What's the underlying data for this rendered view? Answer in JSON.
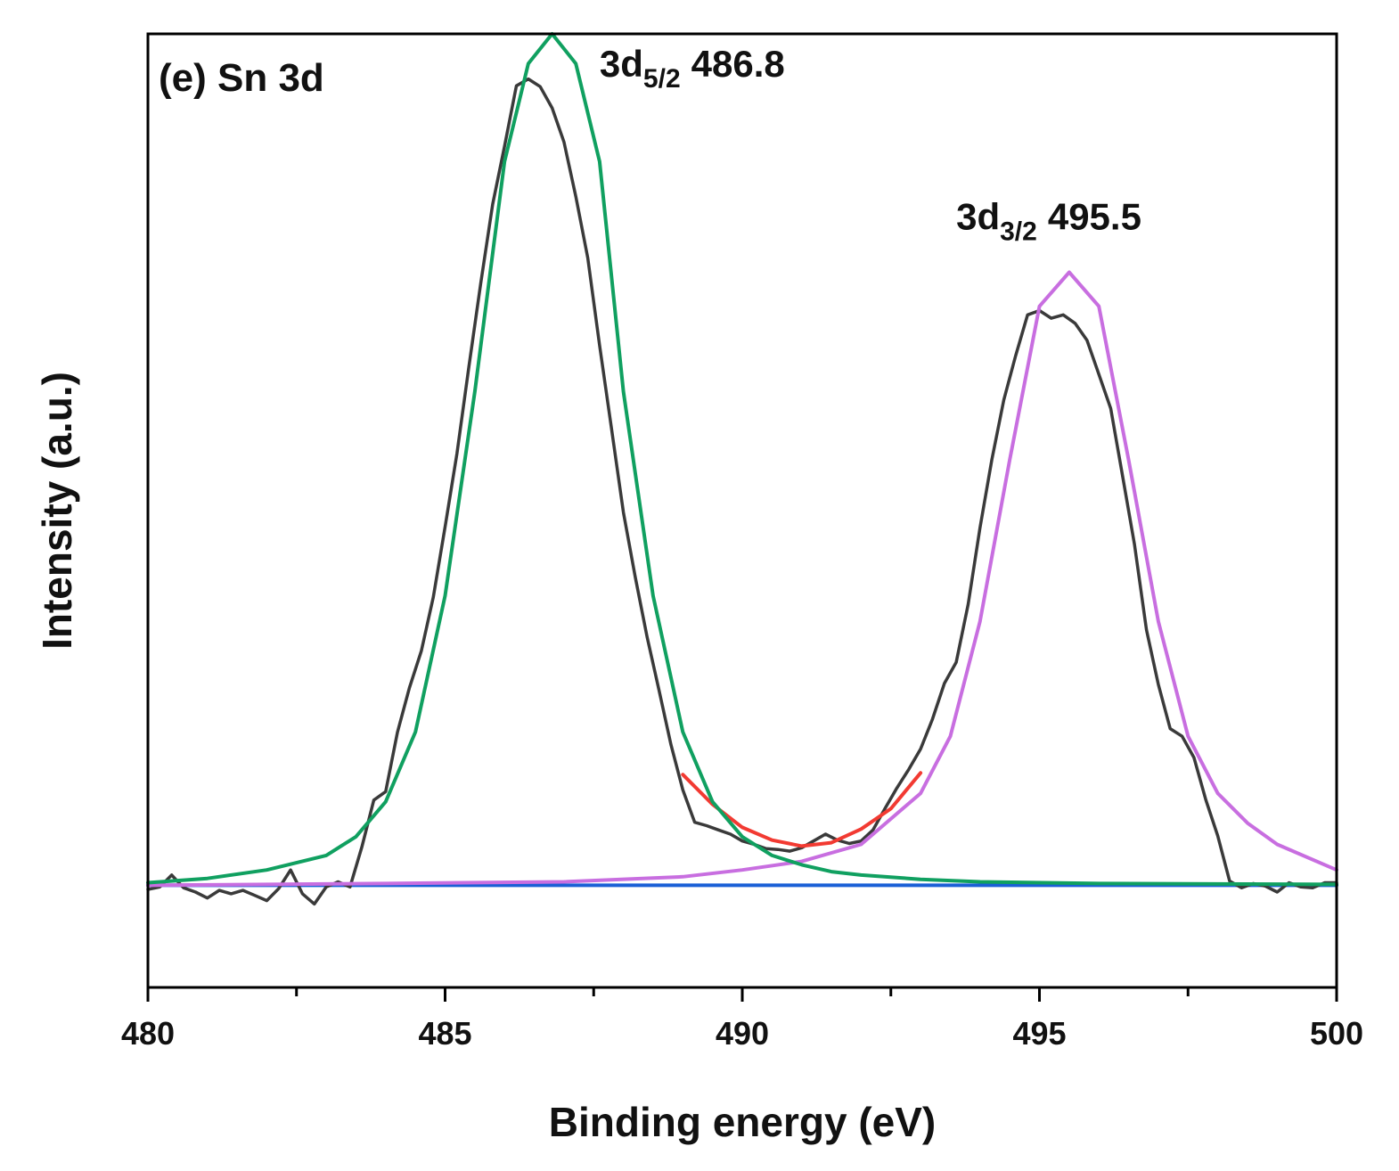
{
  "chart_data": {
    "type": "line",
    "title": "(e) Sn 3d",
    "xlabel": "Binding energy (eV)",
    "ylabel": "Intensity (a.u.)",
    "xlim": [
      480,
      500
    ],
    "ylim": [
      -0.12,
      1.0
    ],
    "x_ticks": [
      480,
      485,
      490,
      495,
      500
    ],
    "x_tick_labels": [
      "480",
      "485",
      "490",
      "495",
      "500"
    ],
    "x_minor_step": 2.5,
    "y_ticks_shown": false,
    "grid": false,
    "legend": "none",
    "colors": {
      "raw": "#3a3a3a",
      "baseline": "#1a5fd6",
      "envelope": "#f23a32",
      "peak1": "#10a060",
      "peak2": "#c86ee0"
    },
    "series": [
      {
        "name": "raw",
        "x": [
          480.0,
          480.2,
          480.4,
          480.6,
          480.8,
          481.0,
          481.2,
          481.4,
          481.6,
          481.8,
          482.0,
          482.2,
          482.4,
          482.6,
          482.8,
          483.0,
          483.2,
          483.4,
          483.6,
          483.8,
          484.0,
          484.2,
          484.4,
          484.6,
          484.8,
          485.0,
          485.2,
          485.4,
          485.6,
          485.8,
          486.0,
          486.2,
          486.4,
          486.6,
          486.8,
          487.0,
          487.2,
          487.4,
          487.6,
          487.8,
          488.0,
          488.2,
          488.4,
          488.6,
          488.8,
          489.0,
          489.2,
          489.4,
          489.6,
          489.8,
          490.0,
          490.2,
          490.4,
          490.6,
          490.8,
          491.0,
          491.2,
          491.4,
          491.6,
          491.8,
          492.0,
          492.2,
          492.4,
          492.6,
          492.8,
          493.0,
          493.2,
          493.4,
          493.6,
          493.8,
          494.0,
          494.2,
          494.4,
          494.6,
          494.8,
          495.0,
          495.2,
          495.4,
          495.6,
          495.8,
          496.0,
          496.2,
          496.4,
          496.6,
          496.8,
          497.0,
          497.2,
          497.4,
          497.6,
          497.8,
          498.0,
          498.2,
          498.4,
          498.6,
          498.8,
          499.0,
          499.2,
          499.4,
          499.6,
          499.8,
          500.0
        ],
        "y": [
          -0.005,
          -0.002,
          0.012,
          -0.003,
          -0.008,
          -0.015,
          -0.006,
          -0.01,
          -0.006,
          -0.012,
          -0.018,
          -0.004,
          0.018,
          -0.01,
          -0.022,
          -0.002,
          0.004,
          -0.002,
          0.045,
          0.1,
          0.11,
          0.18,
          0.232,
          0.275,
          0.338,
          0.421,
          0.507,
          0.609,
          0.707,
          0.8,
          0.868,
          0.939,
          0.947,
          0.938,
          0.913,
          0.873,
          0.809,
          0.737,
          0.634,
          0.536,
          0.438,
          0.362,
          0.291,
          0.229,
          0.165,
          0.112,
          0.074,
          0.07,
          0.065,
          0.06,
          0.052,
          0.048,
          0.043,
          0.042,
          0.04,
          0.044,
          0.052,
          0.06,
          0.053,
          0.049,
          0.052,
          0.065,
          0.09,
          0.114,
          0.136,
          0.16,
          0.195,
          0.237,
          0.262,
          0.33,
          0.42,
          0.5,
          0.57,
          0.622,
          0.67,
          0.675,
          0.666,
          0.67,
          0.66,
          0.64,
          0.6,
          0.56,
          0.48,
          0.4,
          0.3,
          0.236,
          0.184,
          0.175,
          0.15,
          0.1,
          0.058,
          0.005,
          -0.003,
          0.002,
          -0.001,
          -0.008,
          0.003,
          -0.002,
          -0.003,
          0.003,
          0.003
        ]
      },
      {
        "name": "baseline",
        "x": [
          480,
          500
        ],
        "y": [
          0,
          0
        ]
      },
      {
        "name": "envelope",
        "x": [
          489.0,
          489.5,
          490.0,
          490.5,
          491.0,
          491.5,
          492.0,
          492.5,
          493.0
        ],
        "y": [
          0.13,
          0.095,
          0.068,
          0.053,
          0.046,
          0.05,
          0.066,
          0.09,
          0.132
        ]
      },
      {
        "name": "peak1",
        "center": 486.8,
        "fwhm": 2.3,
        "height": 1.0,
        "x": [
          480.0,
          481.0,
          482.0,
          483.0,
          483.5,
          484.0,
          484.5,
          485.0,
          485.5,
          486.0,
          486.4,
          486.8,
          487.2,
          487.6,
          488.0,
          488.5,
          489.0,
          489.5,
          490.0,
          490.5,
          491.0,
          491.5,
          492.0,
          493.0,
          494.0,
          496.0,
          500.0
        ],
        "y": [
          0.003,
          0.008,
          0.018,
          0.035,
          0.057,
          0.098,
          0.18,
          0.34,
          0.58,
          0.85,
          0.965,
          1.0,
          0.965,
          0.85,
          0.58,
          0.34,
          0.18,
          0.098,
          0.057,
          0.035,
          0.024,
          0.016,
          0.012,
          0.007,
          0.004,
          0.002,
          0.001
        ]
      },
      {
        "name": "peak2",
        "center": 495.5,
        "fwhm": 2.3,
        "height": 0.72,
        "x": [
          480.0,
          484.0,
          487.0,
          489.0,
          490.0,
          491.0,
          492.0,
          493.0,
          493.5,
          494.0,
          494.5,
          495.0,
          495.5,
          496.0,
          496.5,
          497.0,
          497.5,
          498.0,
          498.5,
          499.0,
          500.0
        ],
        "y": [
          0.0,
          0.002,
          0.004,
          0.01,
          0.018,
          0.028,
          0.048,
          0.108,
          0.175,
          0.31,
          0.5,
          0.68,
          0.72,
          0.68,
          0.5,
          0.31,
          0.175,
          0.108,
          0.073,
          0.048,
          0.018
        ]
      }
    ],
    "annotations": [
      {
        "text_main": "3d",
        "text_sub": "5/2",
        "text_value": "486.8",
        "x": 487.6,
        "y": 0.95
      },
      {
        "text_main": "3d",
        "text_sub": "3/2",
        "text_value": "495.5",
        "x": 493.6,
        "y": 0.77
      }
    ]
  }
}
